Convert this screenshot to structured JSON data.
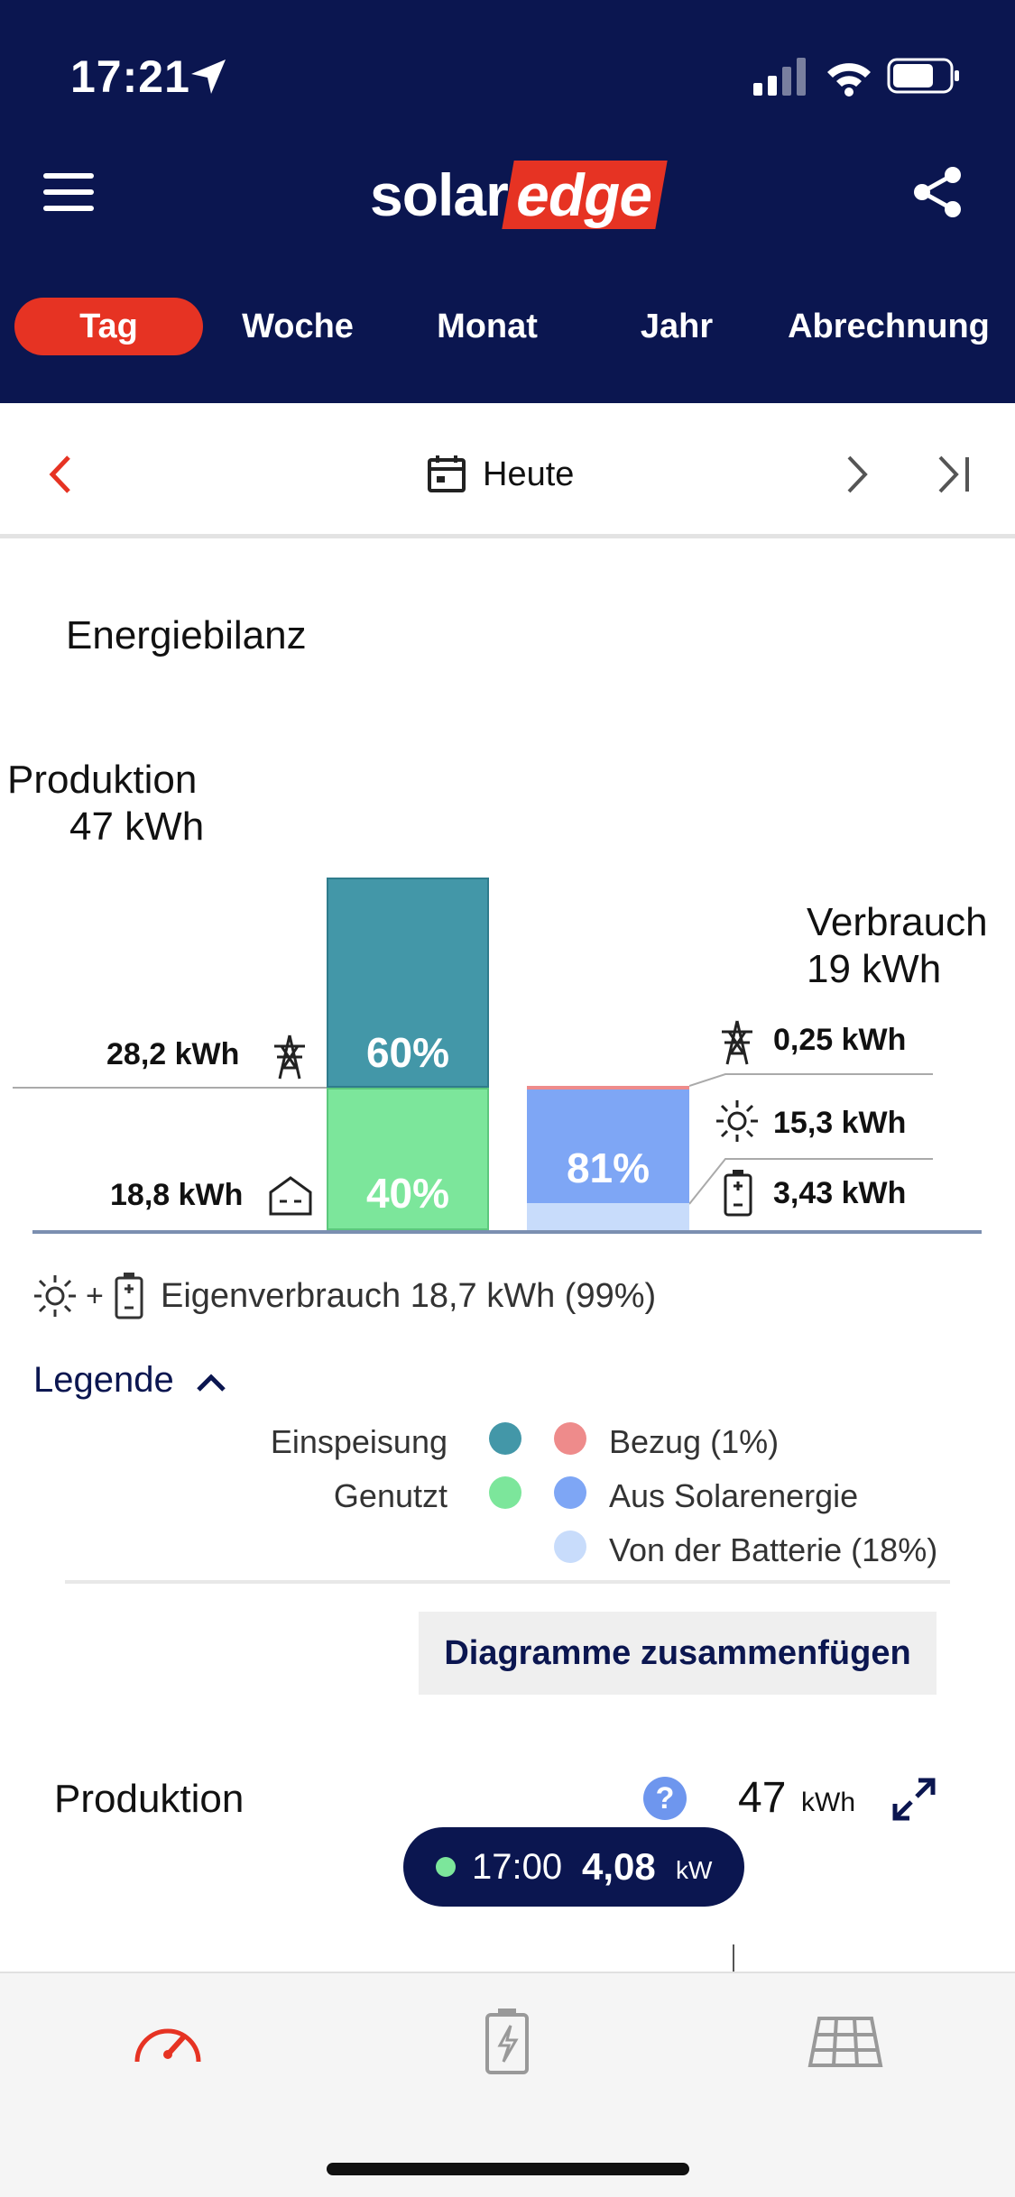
{
  "status": {
    "time": "17:21"
  },
  "header": {
    "logo_solar": "solar",
    "logo_edge": "edge",
    "tabs": [
      "Tag",
      "Woche",
      "Monat",
      "Jahr",
      "Abrechnung"
    ],
    "active_tab": "Tag"
  },
  "datebar": {
    "label": "Heute"
  },
  "balance": {
    "title": "Energiebilanz",
    "production_label": "Produktion",
    "production_value": "47 kWh",
    "consumption_label": "Verbrauch",
    "consumption_value": "19 kWh",
    "export_value": "28,2 kWh",
    "used_value": "18,8 kWh",
    "bar_export_pct": "60%",
    "bar_used_pct": "40%",
    "bar_solar_pct": "81%",
    "grid_import": "0,25 kWh",
    "from_solar": "15,3 kWh",
    "from_battery": "3,43 kWh",
    "self_consumption": "Eigenverbrauch 18,7 kWh (99%)"
  },
  "legend": {
    "title": "Legende",
    "items": [
      {
        "label": "Einspeisung",
        "color": "#4397a8"
      },
      {
        "label": "Genutzt",
        "color": "#7ce69b"
      },
      {
        "label": "Bezug (1%)",
        "color": "#ee8b8b"
      },
      {
        "label": "Aus Solarenergie",
        "color": "#7ea6f5"
      },
      {
        "label": "Von der Batterie (18%)",
        "color": "#c8dcfb"
      }
    ]
  },
  "merge_button": "Diagramme zusammenfügen",
  "production_section": {
    "title": "Produktion",
    "value": "47",
    "unit": "kWh"
  },
  "tooltip": {
    "time": "17:00",
    "value": "4,08",
    "unit": "kW"
  },
  "colors": {
    "brand_navy": "#0b1650",
    "accent_red": "#e63323"
  }
}
